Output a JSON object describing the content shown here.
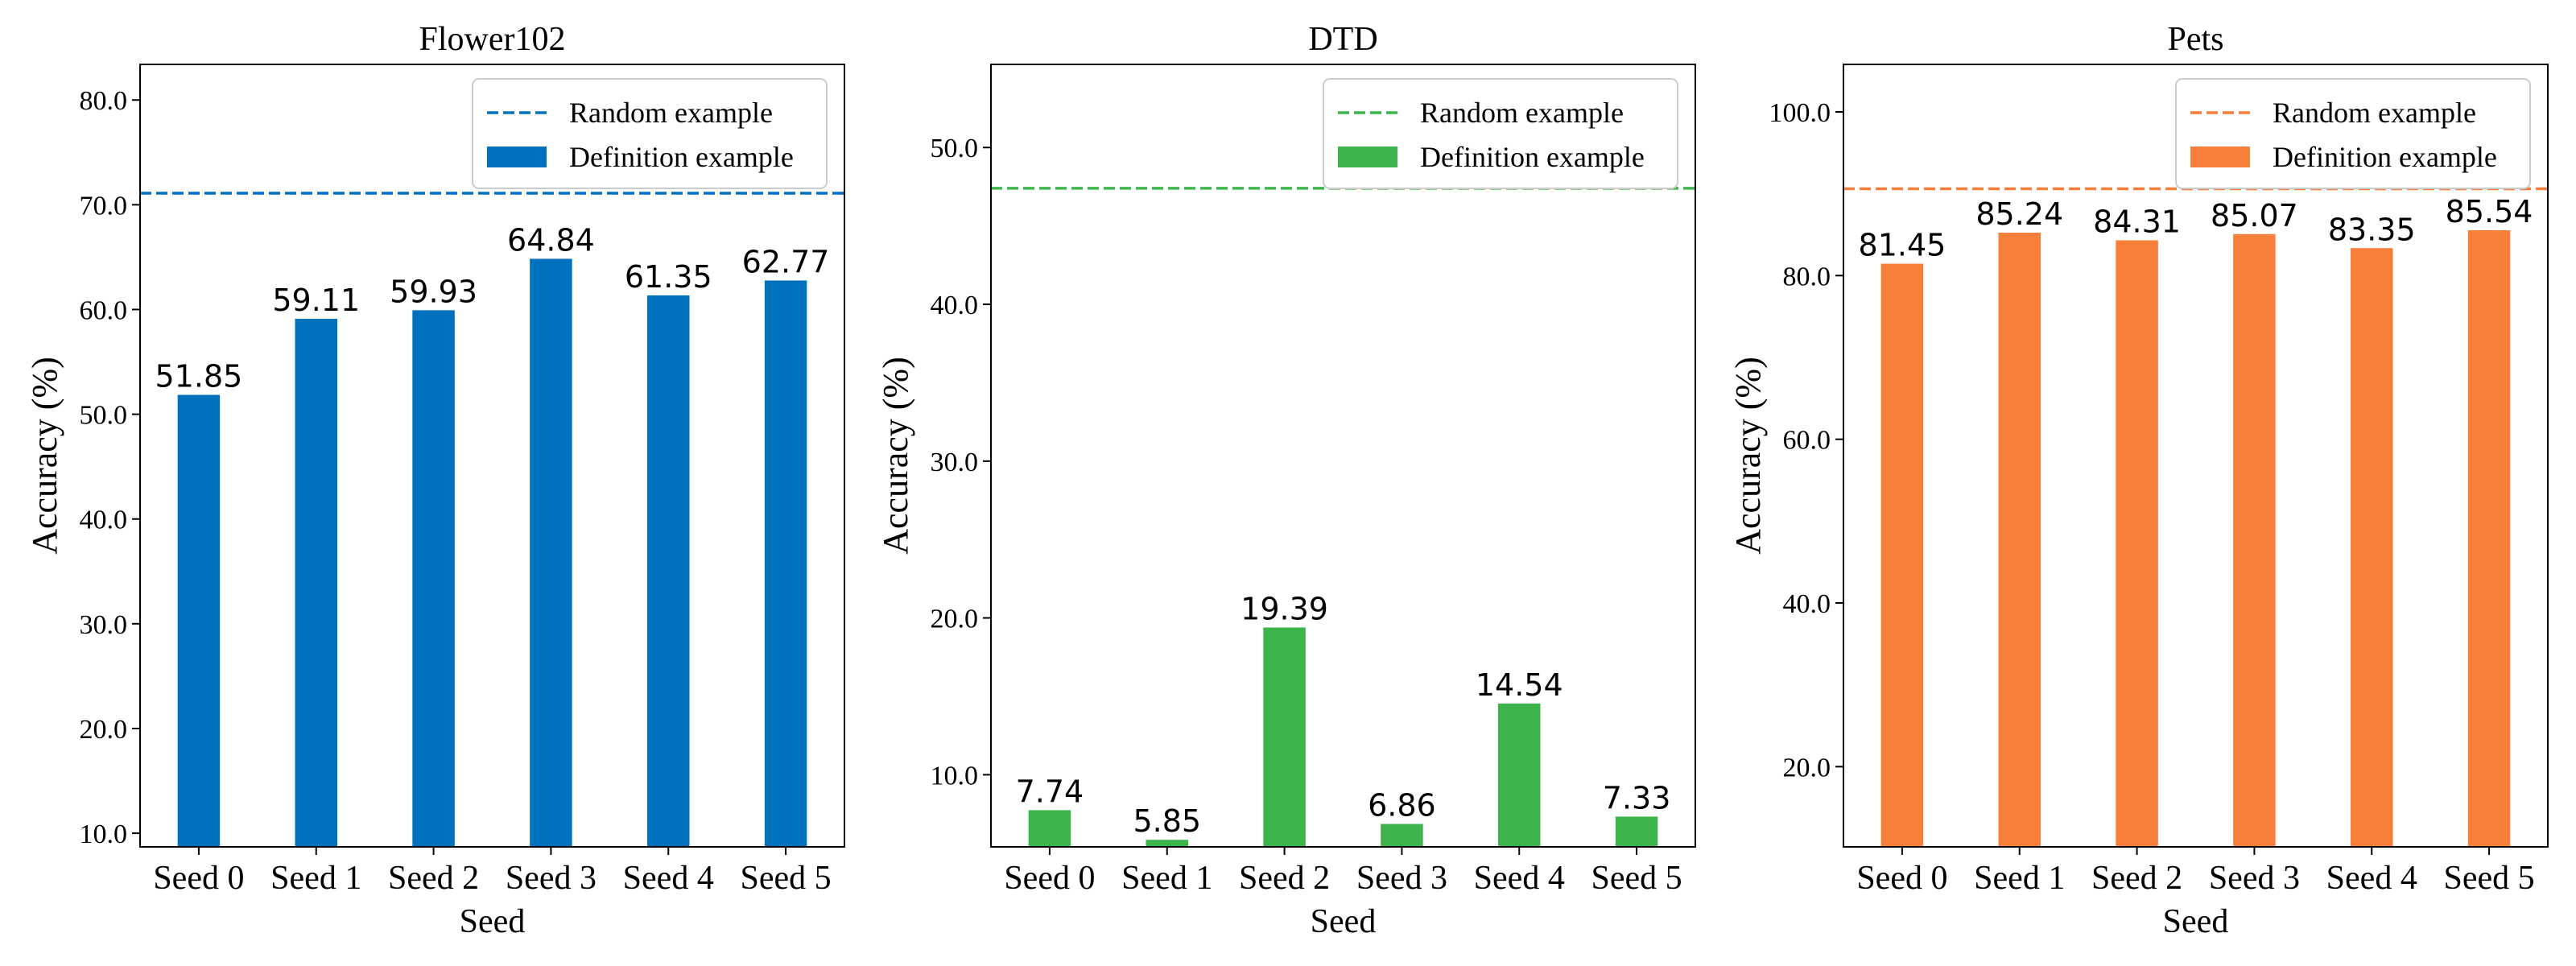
{
  "chart_data": [
    {
      "type": "bar",
      "title": "Flower102",
      "xlabel": "Seed",
      "ylabel": "Accuracy (%)",
      "categories": [
        "Seed 0",
        "Seed 1",
        "Seed 2",
        "Seed 3",
        "Seed 4",
        "Seed 5"
      ],
      "values": [
        51.85,
        59.11,
        59.93,
        64.84,
        61.35,
        62.77
      ],
      "value_labels": [
        "51.85",
        "59.11",
        "59.93",
        "64.84",
        "61.35",
        "62.77"
      ],
      "ylim": [
        8.7,
        83.4
      ],
      "yticks": [
        10,
        20,
        30,
        40,
        50,
        60,
        70,
        80
      ],
      "ytick_labels": [
        "10.0",
        "20.0",
        "30.0",
        "40.0",
        "50.0",
        "60.0",
        "70.0",
        "80.0"
      ],
      "reference_line": {
        "name": "Random  example",
        "value": 71.1,
        "style": "dashed"
      },
      "bar_series_name": "Definition example",
      "color": "#0072BD",
      "legend_position": "top-right"
    },
    {
      "type": "bar",
      "title": "DTD",
      "xlabel": "Seed",
      "ylabel": "Accuracy (%)",
      "categories": [
        "Seed 0",
        "Seed 1",
        "Seed 2",
        "Seed 3",
        "Seed 4",
        "Seed 5"
      ],
      "values": [
        7.74,
        5.85,
        19.39,
        6.86,
        14.54,
        7.33
      ],
      "value_labels": [
        "7.74",
        "5.85",
        "19.39",
        "6.86",
        "14.54",
        "7.33"
      ],
      "ylim": [
        5.4,
        55.3
      ],
      "yticks": [
        10,
        20,
        30,
        40,
        50
      ],
      "ytick_labels": [
        "10.0",
        "20.0",
        "30.0",
        "40.0",
        "50.0"
      ],
      "reference_line": {
        "name": "Random  example",
        "value": 47.4,
        "style": "dashed"
      },
      "bar_series_name": "Definition example",
      "color": "#3CB44B",
      "legend_position": "top-right"
    },
    {
      "type": "bar",
      "title": "Pets",
      "xlabel": "Seed",
      "ylabel": "Accuracy (%)",
      "categories": [
        "Seed 0",
        "Seed 1",
        "Seed 2",
        "Seed 3",
        "Seed 4",
        "Seed 5"
      ],
      "values": [
        81.45,
        85.24,
        84.31,
        85.07,
        83.35,
        85.54
      ],
      "value_labels": [
        "81.45",
        "85.24",
        "84.31",
        "85.07",
        "83.35",
        "85.54"
      ],
      "ylim": [
        10.2,
        105.8
      ],
      "yticks": [
        20,
        40,
        60,
        80,
        100
      ],
      "ytick_labels": [
        "20.0",
        "40.0",
        "60.0",
        "80.0",
        "100.0"
      ],
      "reference_line": {
        "name": "Random  example",
        "value": 90.6,
        "style": "dashed"
      },
      "bar_series_name": "Definition example",
      "color": "#F77F3A",
      "legend_position": "top-right"
    }
  ]
}
